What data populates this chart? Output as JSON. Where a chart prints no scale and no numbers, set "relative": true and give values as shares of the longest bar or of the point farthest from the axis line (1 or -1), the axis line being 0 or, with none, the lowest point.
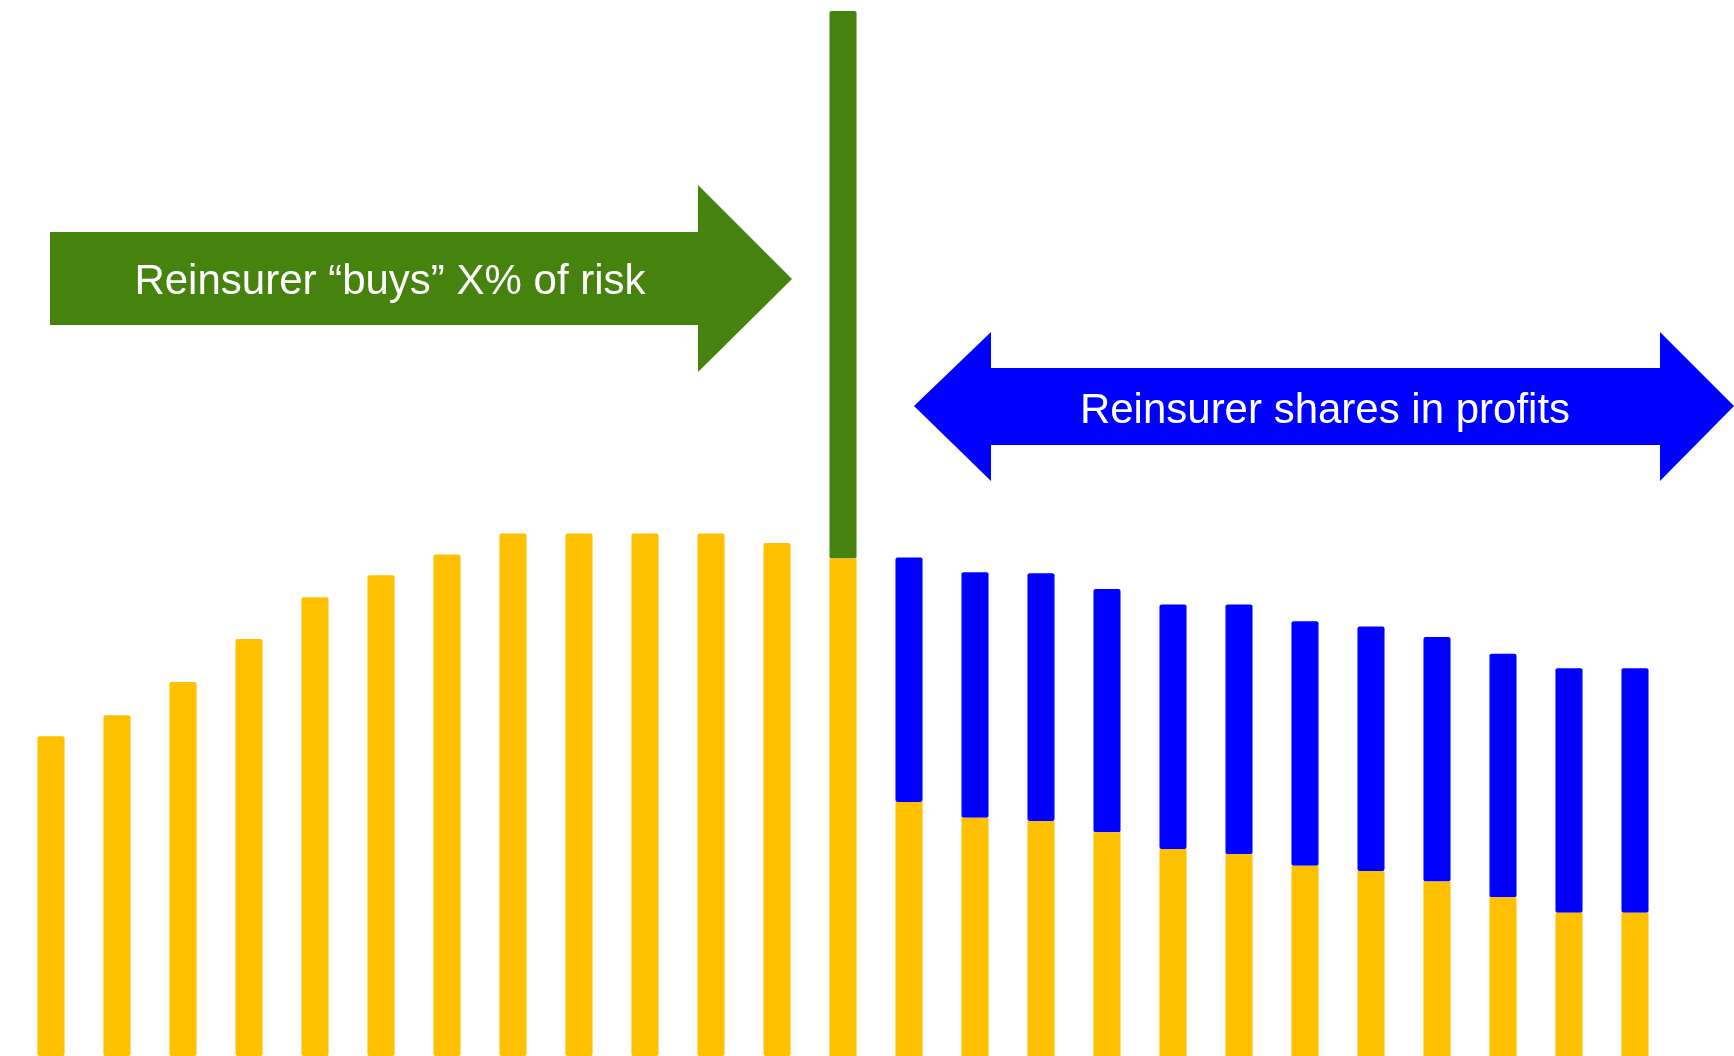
{
  "chart_data": {
    "type": "bar",
    "relative": true,
    "stacked": true,
    "legend": false,
    "categories": [
      null,
      null,
      null,
      null,
      null,
      null,
      null,
      null,
      null,
      null,
      null,
      null,
      null,
      null,
      null,
      null,
      null,
      null,
      null,
      null,
      null,
      null,
      null,
      null,
      null
    ],
    "series": [
      {
        "color": "#ffc000",
        "values": [
          0.306,
          0.326,
          0.358,
          0.399,
          0.439,
          0.46,
          0.48,
          0.5,
          0.5,
          0.5,
          0.5,
          0.491,
          0.476,
          0.243,
          0.228,
          0.225,
          0.214,
          0.198,
          0.193,
          0.182,
          0.177,
          0.167,
          0.152,
          0.137,
          0.137
        ]
      },
      {
        "color": "#46820e",
        "values": [
          null,
          null,
          null,
          null,
          null,
          null,
          null,
          null,
          null,
          null,
          null,
          null,
          0.524,
          null,
          null,
          null,
          null,
          null,
          null,
          null,
          null,
          null,
          null,
          null,
          null
        ]
      },
      {
        "color": "#0000ff",
        "values": [
          null,
          null,
          null,
          null,
          null,
          null,
          null,
          null,
          null,
          null,
          null,
          null,
          null,
          0.234,
          0.235,
          0.237,
          0.233,
          0.234,
          0.239,
          0.234,
          0.234,
          0.234,
          0.233,
          0.234,
          0.234
        ]
      }
    ],
    "annotations": [
      "Reinsurer “buys” X% of risk",
      "Reinsurer shares in profits"
    ]
  }
}
